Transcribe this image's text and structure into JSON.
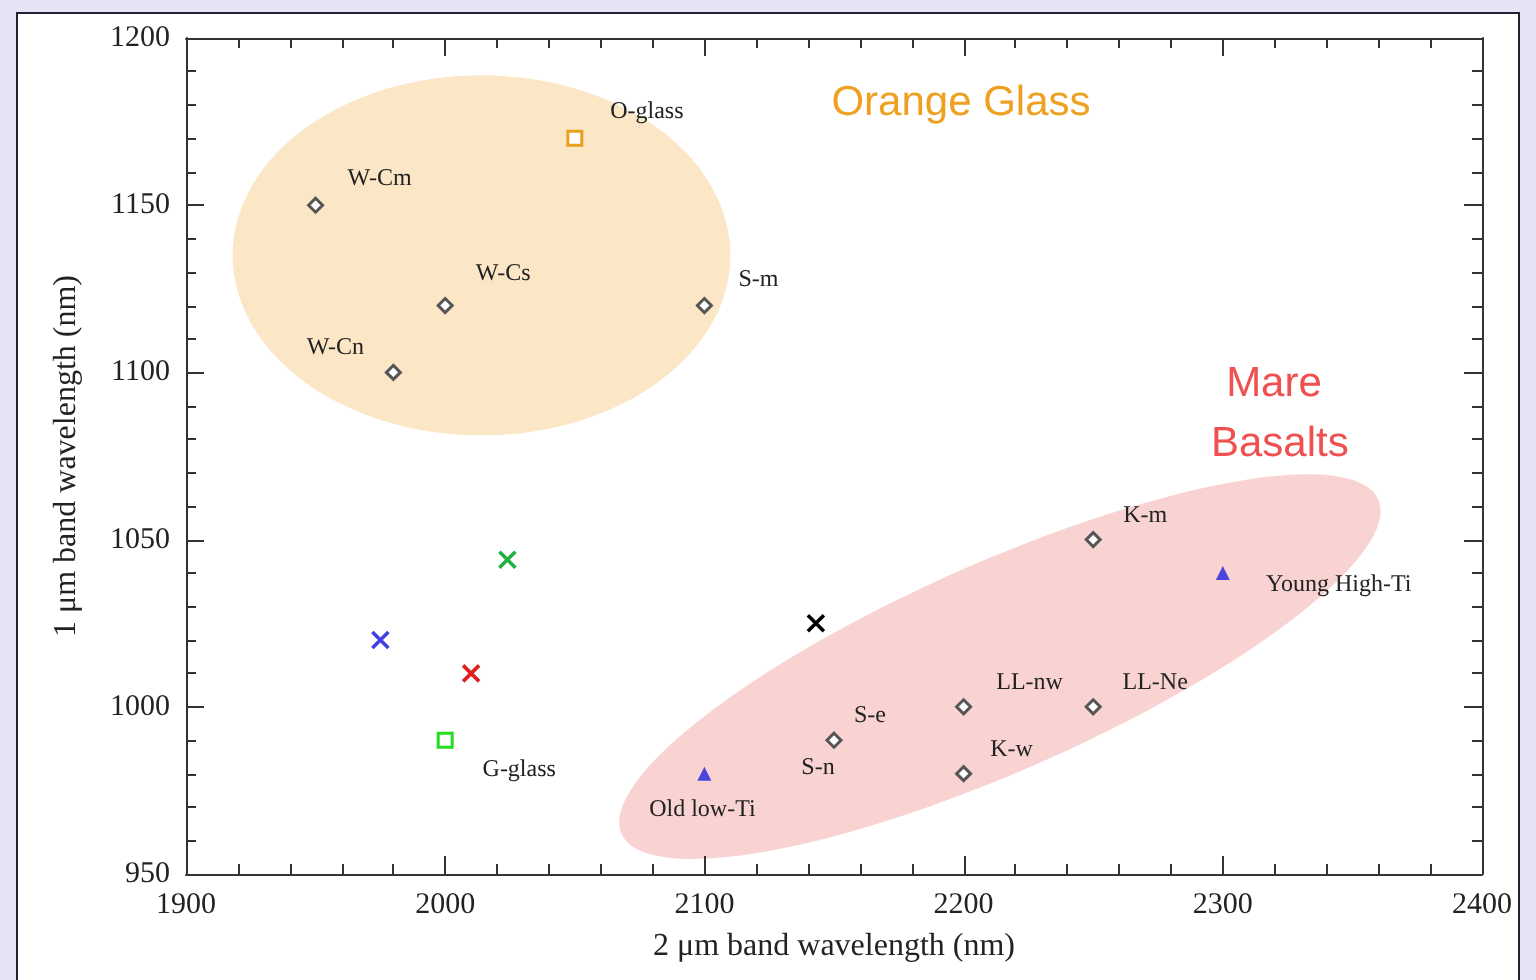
{
  "chart_data": {
    "type": "scatter",
    "xlabel": "2 μm band wavelength (nm)",
    "ylabel": "1 μm band wavelength (nm)",
    "xlim": [
      1900,
      2400
    ],
    "xticks": [
      1900,
      2000,
      2100,
      2200,
      2300,
      2400
    ],
    "ylim": [
      950,
      1200
    ],
    "yticks": [
      950,
      1000,
      1050,
      1100,
      1150,
      1200
    ],
    "grid": false,
    "series": [
      {
        "color": "#555555",
        "marker": "diamond",
        "x": [
          1950,
          2000,
          1980,
          2100,
          2250,
          2200,
          2250,
          2150,
          2200
        ],
        "values": [
          1150,
          1120,
          1100,
          1120,
          1050,
          1000,
          1000,
          990,
          980
        ]
      },
      {
        "color": "#e8a020",
        "marker": "square",
        "x": [
          2050
        ],
        "values": [
          1170
        ]
      },
      {
        "color": "#22dd22",
        "marker": "square",
        "x": [
          2000
        ],
        "values": [
          990
        ]
      },
      {
        "color": "#2020dd",
        "marker": "triangle",
        "x": [
          2100,
          2300
        ],
        "values": [
          980,
          1040
        ]
      },
      {
        "color": "#4040e0",
        "marker": "cross",
        "x": [
          1975
        ],
        "values": [
          1020
        ]
      },
      {
        "color": "#e02020",
        "marker": "cross",
        "x": [
          2010
        ],
        "values": [
          1010
        ]
      },
      {
        "color": "#20b040",
        "marker": "cross",
        "x": [
          2024
        ],
        "values": [
          1044
        ]
      },
      {
        "color": "#000000",
        "marker": "cross",
        "x": [
          2143
        ],
        "values": [
          1025
        ]
      }
    ],
    "annotations": [
      {
        "text": "O-glass",
        "x": 2050,
        "y": 1170
      },
      {
        "text": "W-Cm",
        "x": 1950,
        "y": 1150
      },
      {
        "text": "W-Cs",
        "x": 2000,
        "y": 1120
      },
      {
        "text": "W-Cn",
        "x": 1980,
        "y": 1100
      },
      {
        "text": "S-m",
        "x": 2100,
        "y": 1120
      },
      "Orange Glass",
      "Mare Basalts",
      {
        "text": "K-m",
        "x": 2250,
        "y": 1050
      },
      {
        "text": "Young High-Ti",
        "x": 2300,
        "y": 1040
      },
      {
        "text": "LL-nw",
        "x": 2200,
        "y": 1000
      },
      {
        "text": "LL-Ne",
        "x": 2250,
        "y": 1000
      },
      {
        "text": "S-e",
        "x": 2150,
        "y": 990
      },
      {
        "text": "S-n",
        "x": 2150,
        "y": 990
      },
      {
        "text": "K-w",
        "x": 2200,
        "y": 980
      },
      {
        "text": "Old low-Ti",
        "x": 2100,
        "y": 980
      },
      {
        "text": "G-glass",
        "x": 2000,
        "y": 990
      }
    ]
  }
}
